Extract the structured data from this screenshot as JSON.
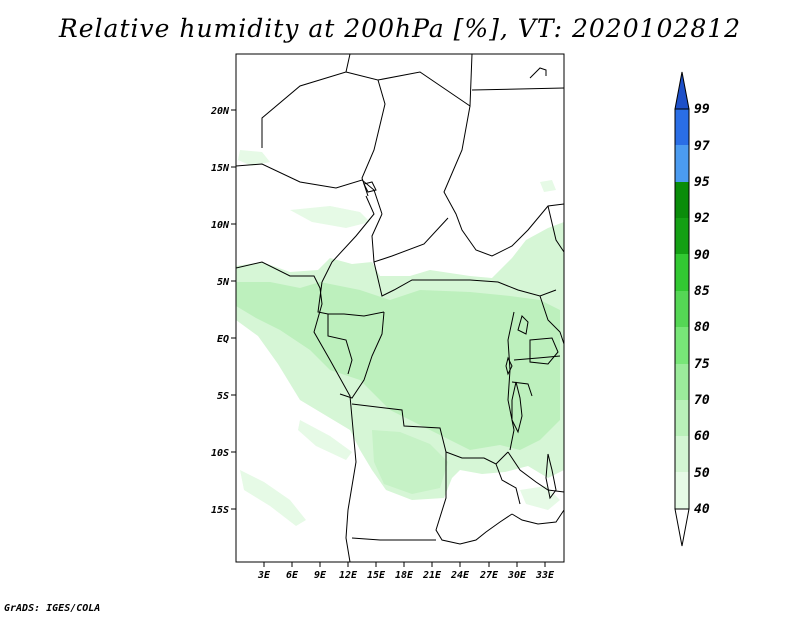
{
  "title": "Relative humidity at 200hPa [%], VT: 2020102812",
  "credit": "GrADS: IGES/COLA",
  "lat_labels": [
    "20N",
    "15N",
    "10N",
    "5N",
    "EQ",
    "5S",
    "10S",
    "15S"
  ],
  "lon_labels": [
    "3E",
    "6E",
    "9E",
    "12E",
    "15E",
    "18E",
    "21E",
    "24E",
    "27E",
    "30E",
    "33E"
  ],
  "colorbar": {
    "levels": [
      "40",
      "50",
      "60",
      "70",
      "75",
      "80",
      "85",
      "90",
      "92",
      "95",
      "97",
      "99"
    ],
    "colors": [
      "#ffffff",
      "#e6fae6",
      "#d2f5d2",
      "#b9f0b9",
      "#9beb9b",
      "#78e678",
      "#55d755",
      "#32c832",
      "#14a014",
      "#0a8c0a",
      "#4b9bf0",
      "#2a6ee6",
      "#1e50c8"
    ]
  },
  "colors": {
    "land_light": "#d2f5d2",
    "land_mid": "#b9f0b9",
    "border": "#000000"
  }
}
